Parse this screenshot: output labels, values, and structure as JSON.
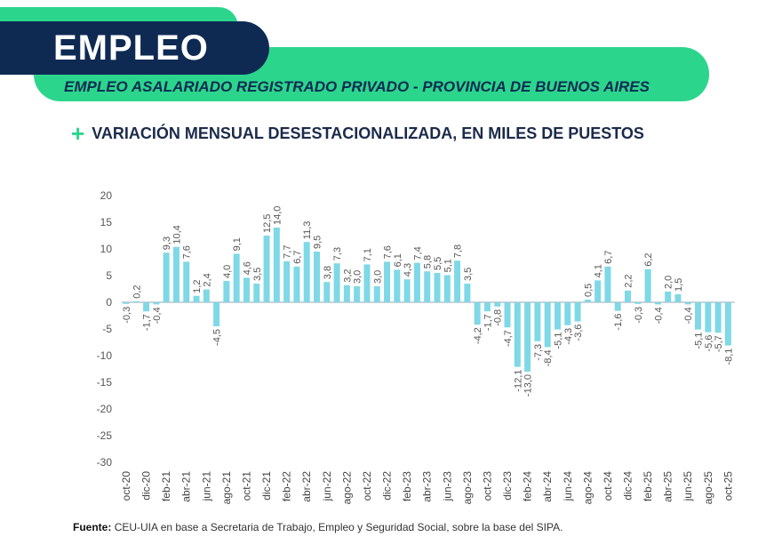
{
  "header": {
    "badge": "EMPLEO",
    "subtitle": "EMPLEO ASALARIADO REGISTRADO PRIVADO - PROVINCIA DE BUENOS AIRES",
    "plus": "+",
    "chart_heading": "VARIACIÓN MENSUAL DESESTACIONALIZADA, EN MILES DE PUESTOS"
  },
  "footer": {
    "source_label": "Fuente:",
    "source_text": "CEU-UIA en base a Secretaria de Trabajo, Empleo y Seguridad Social, sobre la base del SIPA."
  },
  "colors": {
    "bar": "#7fd8e6",
    "navy": "#0e2a53",
    "green": "#2bd68c"
  },
  "chart_data": {
    "type": "bar",
    "ylim": [
      -30,
      20
    ],
    "yticks": [
      20,
      15,
      10,
      5,
      0,
      -5,
      -10,
      -15,
      -20,
      -25,
      -30
    ],
    "xtick_labels": [
      "oct-20",
      "dic-20",
      "feb-21",
      "abr-21",
      "jun-21",
      "ago-21",
      "oct-21",
      "dic-21",
      "feb-22",
      "abr-22",
      "jun-22",
      "ago-22",
      "oct-22",
      "dic-22",
      "feb-23",
      "abr-23",
      "jun-23",
      "ago-23",
      "oct-23",
      "dic-23",
      "feb-24",
      "abr-24",
      "jun-24",
      "ago-24",
      "oct-24",
      "dic-24",
      "feb-25",
      "abr-25",
      "jun-25",
      "ago-25",
      "oct-25"
    ],
    "values": [
      -0.3,
      0.2,
      -1.7,
      -0.4,
      9.3,
      10.4,
      7.6,
      1.2,
      2.4,
      -4.5,
      4.0,
      9.1,
      4.6,
      3.5,
      12.5,
      14.0,
      7.7,
      6.7,
      11.3,
      9.5,
      3.8,
      7.3,
      3.2,
      3.0,
      7.1,
      3.0,
      7.6,
      6.1,
      4.3,
      7.4,
      5.8,
      5.5,
      5.1,
      7.8,
      3.5,
      -4.2,
      -1.7,
      -0.8,
      -4.7,
      -12.1,
      -13.0,
      -7.3,
      -8.4,
      -5.1,
      -4.3,
      -3.6,
      0.5,
      4.1,
      6.7,
      -1.6,
      2.2,
      -0.3,
      6.2,
      -0.4,
      2.0,
      1.5,
      -0.4,
      -5.1,
      -5.6,
      -5.7,
      -8.1
    ],
    "labels": [
      "-0,3",
      "0,2",
      "-1,7",
      "-0,4",
      "9,3",
      "10,4",
      "7,6",
      "1,2",
      "2,4",
      "-4,5",
      "4,0",
      "9,1",
      "4,6",
      "3,5",
      "12,5",
      "14,0",
      "7,7",
      "6,7",
      "11,3",
      "9,5",
      "3,8",
      "7,3",
      "3,2",
      "3,0",
      "7,1",
      "3,0",
      "7,6",
      "6,1",
      "4,3",
      "7,4",
      "5,8",
      "5,5",
      "5,1",
      "7,8",
      "3,5",
      "-4,2",
      "-1,7",
      "-0,8",
      "-4,7",
      "-12,1",
      "-13,0",
      "-7,3",
      "-8,4",
      "-5,1",
      "-4,3",
      "-3,6",
      "0,5",
      "4,1",
      "6,7",
      "-1,6",
      "2,2",
      "-0,3",
      "6,2",
      "-0,4",
      "2,0",
      "1,5",
      "-0,4",
      "-5,1",
      "-5,6",
      "-5,7",
      "-8,1"
    ],
    "grid": false,
    "legend": "none"
  }
}
